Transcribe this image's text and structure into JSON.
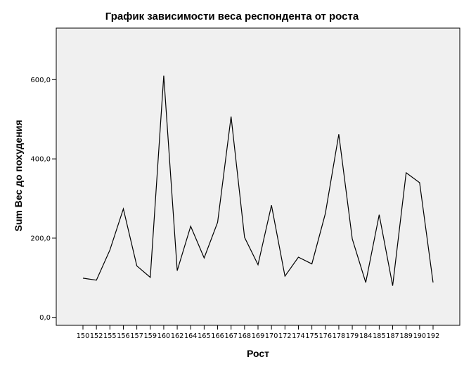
{
  "chart_data": {
    "type": "line",
    "title": "График зависимости веса респондента от роста",
    "xlabel": "Рост",
    "ylabel": "Sum Вес до похудения",
    "categories": [
      "150",
      "152",
      "155",
      "156",
      "157",
      "159",
      "160",
      "162",
      "164",
      "165",
      "166",
      "167",
      "168",
      "169",
      "170",
      "172",
      "174",
      "175",
      "176",
      "178",
      "179",
      "184",
      "185",
      "187",
      "189",
      "190",
      "192"
    ],
    "values": [
      99,
      94,
      170,
      274,
      130,
      101,
      610,
      118,
      230,
      150,
      240,
      507,
      202,
      133,
      283,
      104,
      152,
      135,
      262,
      462,
      198,
      88,
      259,
      80,
      365,
      340,
      88
    ],
    "ylim": [
      -20,
      730
    ],
    "yticks": [
      0,
      200,
      400,
      600
    ],
    "ytick_labels": [
      "0,0",
      "200,0",
      "400,0",
      "600,0"
    ],
    "grid": false,
    "legend": "none",
    "colors": {
      "plot_background": "#f0f0f0",
      "line": "#000000",
      "frame": "#000000"
    }
  }
}
